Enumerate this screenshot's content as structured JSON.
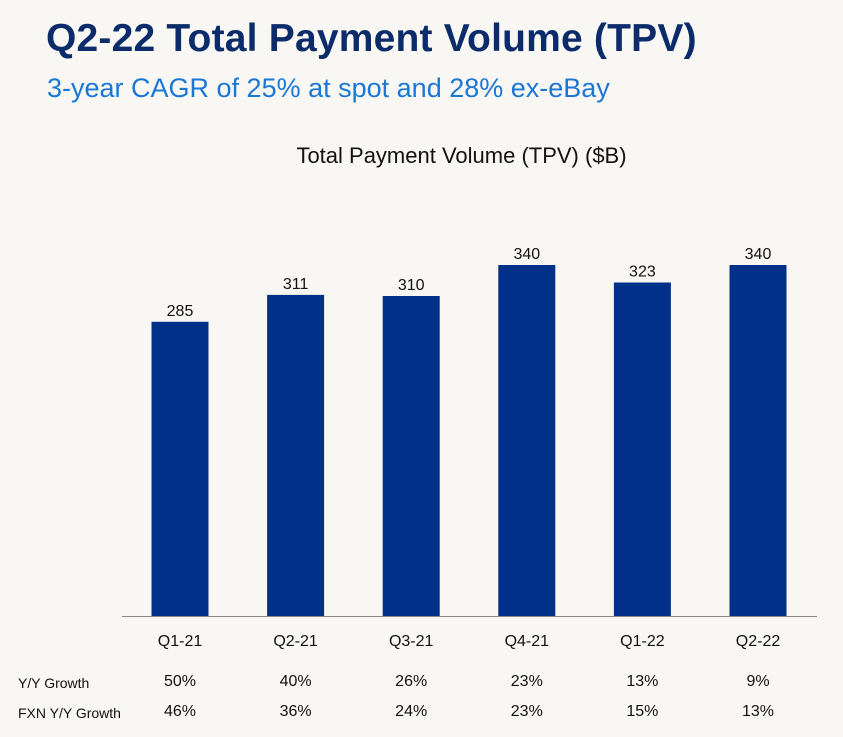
{
  "header": {
    "title": "Q2-22 Total Payment Volume (TPV)",
    "subtitle": "3-year CAGR of 25% at spot and 28% ex-eBay"
  },
  "colors": {
    "bar": "#003087",
    "title": "#0b2b6a",
    "subtitle": "#1a77d6",
    "background": "#f8f7f4"
  },
  "chart_data": {
    "type": "bar",
    "title": "Total Payment Volume (TPV) ($B)",
    "xlabel": "",
    "ylabel": "",
    "categories": [
      "Q1-21",
      "Q2-21",
      "Q3-21",
      "Q4-21",
      "Q1-22",
      "Q2-22"
    ],
    "values": [
      285,
      311,
      310,
      340,
      323,
      340
    ],
    "data_labels": [
      "285",
      "311",
      "310",
      "340",
      "323",
      "340"
    ],
    "ylim": [
      0,
      340
    ],
    "grid": false,
    "legend": "none"
  },
  "growth_table": {
    "rows": [
      {
        "label": "Y/Y Growth",
        "values": [
          "50%",
          "40%",
          "26%",
          "23%",
          "13%",
          "9%"
        ]
      },
      {
        "label": "FXN Y/Y Growth",
        "values": [
          "46%",
          "36%",
          "24%",
          "23%",
          "15%",
          "13%"
        ]
      }
    ]
  }
}
